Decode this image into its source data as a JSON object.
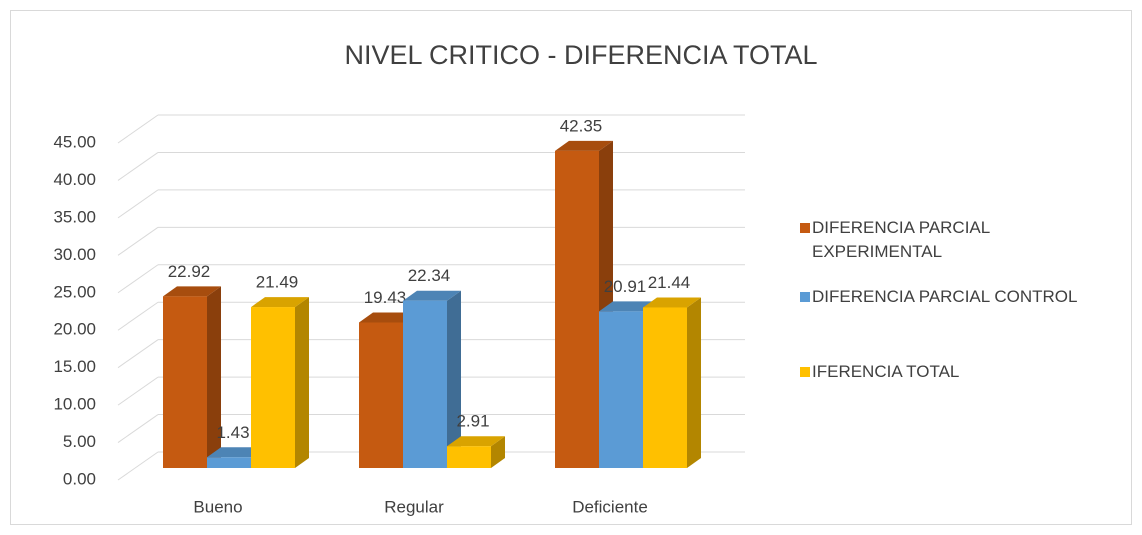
{
  "chart_data": {
    "type": "bar3d",
    "title": "NIVEL CRITICO - DIFERENCIA TOTAL",
    "categories": [
      "Bueno",
      "Regular",
      "Deficiente"
    ],
    "series": [
      {
        "name": "DIFERENCIA PARCIAL EXPERIMENTAL",
        "color": "#c55a11",
        "values": [
          22.92,
          19.43,
          42.35
        ]
      },
      {
        "name": "DIFERENCIA PARCIAL CONTROL",
        "color": "#5b9bd5",
        "values": [
          1.43,
          22.34,
          20.91
        ]
      },
      {
        "name": "IFERENCIA TOTAL",
        "color": "#ffc000",
        "values": [
          21.49,
          2.91,
          21.44
        ]
      }
    ],
    "ylim": [
      0,
      45
    ],
    "yticks": [
      {
        "value": 0,
        "label": "0.00"
      },
      {
        "value": 5,
        "label": "5.00"
      },
      {
        "value": 10,
        "label": "10.00"
      },
      {
        "value": 15,
        "label": "15.00"
      },
      {
        "value": 20,
        "label": "20.00"
      },
      {
        "value": 25,
        "label": "25.00"
      },
      {
        "value": 30,
        "label": "30.00"
      },
      {
        "value": 35,
        "label": "35.00"
      },
      {
        "value": 40,
        "label": "40.00"
      },
      {
        "value": 45,
        "label": "45.00"
      }
    ],
    "grid": true,
    "legend": "right"
  }
}
